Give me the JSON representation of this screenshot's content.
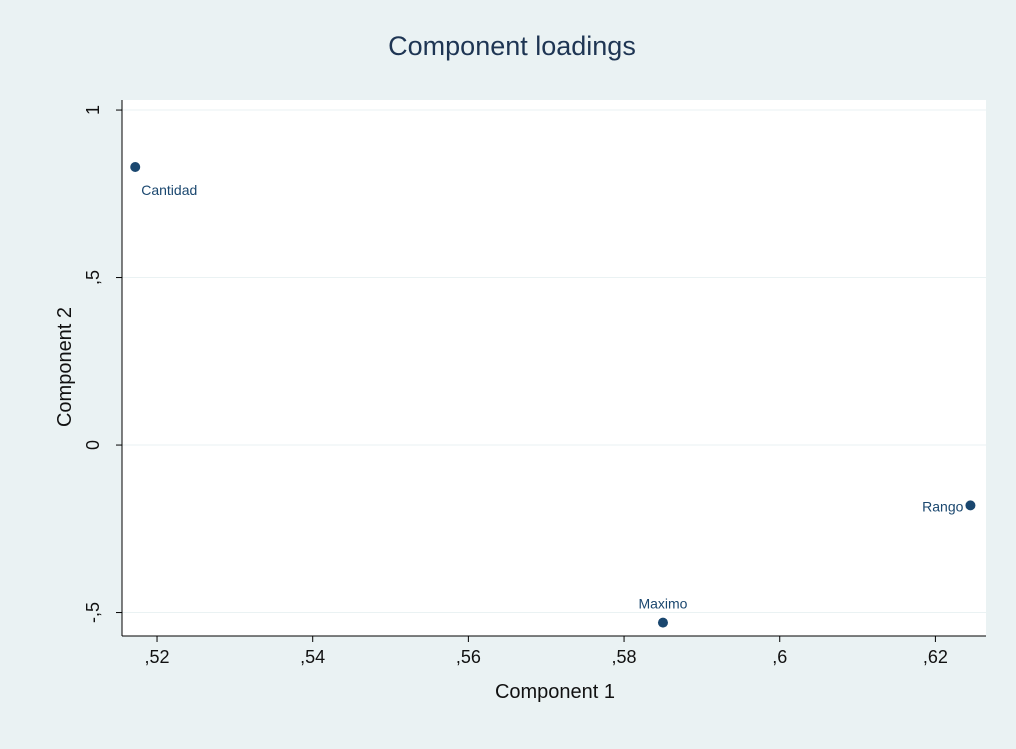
{
  "chart_data": {
    "type": "scatter",
    "title": "Component loadings",
    "xlabel": "Component 1",
    "ylabel": "Component 2",
    "xlim": [
      0.5155,
      0.6265
    ],
    "ylim": [
      -0.57,
      1.03
    ],
    "x_ticks": [
      0.52,
      0.54,
      0.56,
      0.58,
      0.6,
      0.62
    ],
    "x_tick_labels": [
      ",52",
      ",54",
      ",56",
      ",58",
      ",6",
      ",62"
    ],
    "y_ticks": [
      -0.5,
      0,
      0.5,
      1
    ],
    "y_tick_labels": [
      "-,5",
      "0",
      ",5",
      "1"
    ],
    "grid": true,
    "points": [
      {
        "label": "Cantidad",
        "x": 0.5172,
        "y": 0.83,
        "label_position": "below-right"
      },
      {
        "label": "Maximo",
        "x": 0.585,
        "y": -0.53,
        "label_position": "above"
      },
      {
        "label": "Rango",
        "x": 0.6245,
        "y": -0.18,
        "label_position": "left"
      }
    ],
    "colors": {
      "outer_background": "#eaf2f3",
      "plot_background": "#ffffff",
      "gridline": "#eaf2f3",
      "marker": "#1a476f",
      "title_text": "#1e3553",
      "label_text": "#1a476f"
    }
  }
}
